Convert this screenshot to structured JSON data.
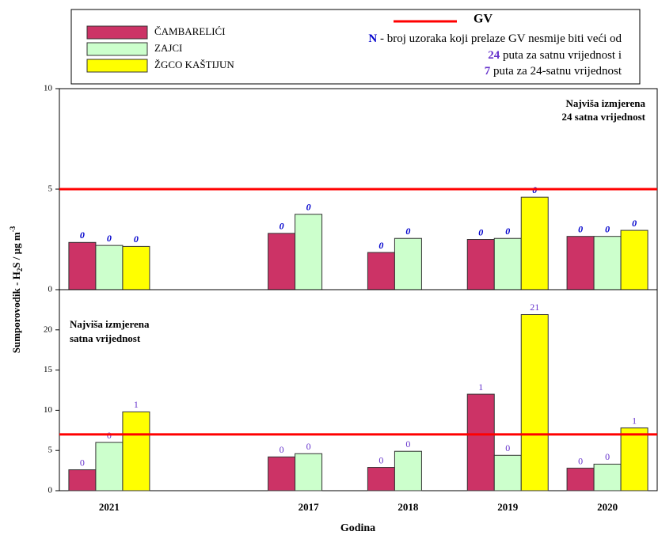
{
  "legend": {
    "gv_label": "GV",
    "note_letter": "N",
    "note_text": " - broj uzoraka koji prelaze GV nesmije biti veći od",
    "hourly_count": 24,
    "hourly_text": " puta za satnu vrijednost i",
    "daily_count": 7,
    "daily_text": " puta za 24-satnu vrijednost"
  },
  "chart_data": [
    {
      "type": "bar",
      "annotation": [
        "Najviša izmjerena",
        "24 satna vrijednost"
      ],
      "y_label": [
        "Sumporovodik - H",
        "2",
        "S / µg m",
        "-3"
      ],
      "categories": [
        "2021",
        null,
        "2017",
        "2018",
        "2019",
        "2020"
      ],
      "ylim": [
        0,
        10
      ],
      "yticks": [
        0,
        5,
        10
      ],
      "gv": 5,
      "gv_color": "#ff0000",
      "label_color": "#0000cc",
      "series": [
        {
          "name": "ČAMBARELIĆI",
          "color": "#cc3366",
          "values": [
            2.35,
            null,
            2.8,
            1.85,
            2.5,
            2.65
          ],
          "exceedances": [
            0,
            null,
            0,
            0,
            0,
            0
          ]
        },
        {
          "name": "ZAJCI",
          "color": "#ccffcc",
          "values": [
            2.2,
            null,
            3.75,
            2.55,
            2.55,
            2.65
          ],
          "exceedances": [
            0,
            null,
            0,
            0,
            0,
            0
          ]
        },
        {
          "name": "ŽGCO KAŠTIJUN",
          "color": "#ffff00",
          "values": [
            2.15,
            null,
            null,
            null,
            4.6,
            2.95
          ],
          "exceedances": [
            0,
            null,
            null,
            null,
            0,
            0
          ]
        }
      ]
    },
    {
      "type": "bar",
      "annotation": [
        "Najviša izmjerena",
        "satna vrijednost"
      ],
      "x_label": "Godina",
      "categories": [
        "2021",
        null,
        "2017",
        "2018",
        "2019",
        "2020"
      ],
      "ylim": [
        0,
        25
      ],
      "yticks": [
        0,
        5,
        10,
        15,
        20
      ],
      "gv": 7,
      "gv_color": "#ff0000",
      "label_color": "#6633cc",
      "series": [
        {
          "name": "ČAMBARELIĆI",
          "color": "#cc3366",
          "values": [
            2.6,
            null,
            4.2,
            2.9,
            12.0,
            2.8
          ],
          "exceedances": [
            0,
            null,
            0,
            0,
            1,
            0
          ]
        },
        {
          "name": "ZAJCI",
          "color": "#ccffcc",
          "values": [
            6.0,
            null,
            4.6,
            4.9,
            4.4,
            3.3
          ],
          "exceedances": [
            0,
            null,
            0,
            0,
            0,
            0
          ]
        },
        {
          "name": "ŽGCO KAŠTIJUN",
          "color": "#ffff00",
          "values": [
            9.8,
            null,
            null,
            null,
            21.9,
            7.8
          ],
          "exceedances": [
            1,
            null,
            null,
            null,
            21,
            1
          ]
        }
      ]
    }
  ]
}
